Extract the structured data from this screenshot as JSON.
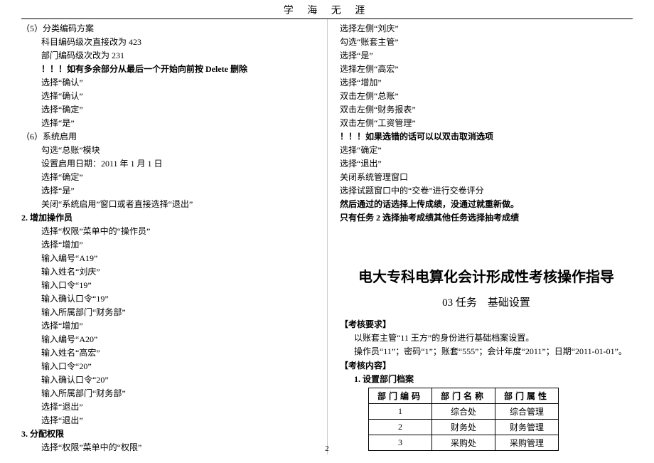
{
  "header": "学 海 无 涯",
  "page_number": "2",
  "left": {
    "item5_title": "（5）分类编码方案",
    "item5_lines": [
      "科目编码级次直接改为 423",
      "部门编码级次改为 231"
    ],
    "warn1": "！！！如有多余部分从最后一个开始向前按 Delete 删除",
    "after_warn1": [
      "选择“确认”",
      "选择“确认”",
      "选择“确定”",
      "选择“是”"
    ],
    "item6_title": "（6）系统启用",
    "item6_lines": [
      "勾选“总账”模块",
      "设置启用日期：2011 年 1 月 1 日",
      "选择“确定”",
      "选择“是”",
      "关闭“系统启用”窗口或者直接选择“退出”"
    ],
    "sec2_title": "2. 增加操作员",
    "sec2_lines": [
      "选择“权限”菜单中的“操作员”",
      "选择“增加”",
      "输入编号“A19”",
      "输入姓名“刘庆”",
      "输入口令“19”",
      "输入确认口令“19”",
      "输入所属部门“财务部”",
      "选择“增加”",
      "输入编号“A20”",
      "输入姓名“高宏”",
      "输入口令“20”",
      "输入确认口令“20”",
      "输入所属部门“财务部”",
      "选择“退出”",
      "选择“退出”"
    ],
    "sec3_title": "3. 分配权限",
    "sec3_lines": [
      "选择“权限”菜单中的“权限”"
    ]
  },
  "right": {
    "top_lines": [
      "选择左侧“刘庆”",
      "勾选“账套主管”",
      "选择“是”",
      "选择左侧“高宏”",
      "选择“增加”",
      "双击左侧“总账”",
      "双击左侧“财务报表”",
      "双击左侧“工资管理”"
    ],
    "warn2": "！！！如果选错的话可以以双击取消选项",
    "after_warn2": [
      "选择“确定”",
      "选择“退出”",
      "关闭系统管理窗口",
      "选择试题窗口中的“交卷”进行交卷评分"
    ],
    "bold1": "然后通过的话选择上传成绩，没通过就重新做。",
    "bold2": "只有任务 2 选择抽考成绩其他任务选择抽考成绩",
    "big_title": "电大专科电算化会计形成性考核操作指导",
    "subtitle": "03 任务　基础设置",
    "kh_req": "【考核要求】",
    "kh_req_l1": "以账套主管“11 王方”的身份进行基础档案设置。",
    "kh_req_l2": "操作员“11”；密码“1”；账套“555”；会计年度“2011”；日期“2011-01-01”。",
    "kh_content": "【考核内容】",
    "kh_content_l1": "1. 设置部门档案",
    "table": {
      "headers": [
        "部门编码",
        "部门名称",
        "部门属性"
      ],
      "rows": [
        [
          "1",
          "综合处",
          "综合管理"
        ],
        [
          "2",
          "财务处",
          "财务管理"
        ],
        [
          "3",
          "采购处",
          "采购管理"
        ]
      ]
    }
  }
}
